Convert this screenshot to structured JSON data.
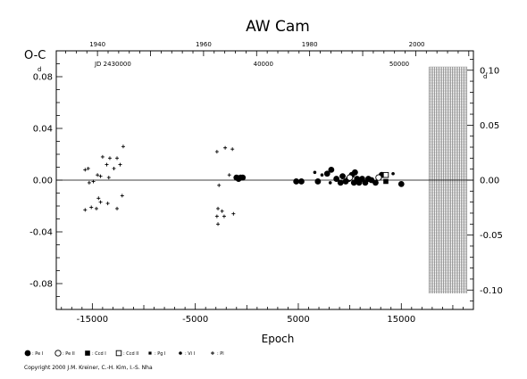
{
  "chart_data": {
    "type": "scatter",
    "title": "AW Cam",
    "ylabel": "O-C",
    "y_unit_mark": "d",
    "xlabel": "Epoch",
    "xlim": [
      -18500,
      22000
    ],
    "ylim": [
      -0.1,
      0.1
    ],
    "x_ticks": [
      -15000,
      -5000,
      5000,
      15000
    ],
    "x_tick_labels": [
      "-15000",
      "-5000",
      "5000",
      "15000"
    ],
    "y_ticks": [
      0.08,
      0.04,
      0.0,
      -0.04,
      -0.08
    ],
    "y_tick_labels": [
      "0.08",
      "0.04",
      "0.00",
      "-0.04",
      "-0.08"
    ],
    "y_right_ticks": [
      0.1,
      0.05,
      0.0,
      -0.05,
      -0.1
    ],
    "y_right_tick_labels": [
      "0.10",
      "0.05",
      "0.00",
      "-0.05",
      "-0.10"
    ],
    "top_year_ticks": [
      1940,
      1960,
      1980,
      2000
    ],
    "top_year_positions": [
      -14500,
      -4200,
      6100,
      16500
    ],
    "top_jd_labels": [
      {
        "text": "JD 2430000",
        "x": -13000
      },
      {
        "text": "40000",
        "x": 1600
      },
      {
        "text": "50000",
        "x": 14800
      }
    ],
    "shaded_region": {
      "x_start": 17700,
      "x_end": 21400
    },
    "grid": false,
    "zero_line": true,
    "legend_position": "bottom",
    "legend": [
      {
        "symbol": "filled-circle",
        "label": ": Pe I"
      },
      {
        "symbol": "open-circle",
        "label": ": Pe II"
      },
      {
        "symbol": "filled-square",
        "label": ": Ccd I"
      },
      {
        "symbol": "open-square",
        "label": ": Ccd II"
      },
      {
        "symbol": "small-square",
        "label": ": Pg I"
      },
      {
        "symbol": "small-circle",
        "label": ": Vi I"
      },
      {
        "symbol": "plus",
        "label": ": Pl"
      }
    ],
    "series": [
      {
        "name": "Pl",
        "marker": "plus",
        "points": [
          [
            -15700,
            0.008
          ],
          [
            -15400,
            0.009
          ],
          [
            -15300,
            -0.002
          ],
          [
            -14900,
            -0.001
          ],
          [
            -14500,
            0.004
          ],
          [
            -14400,
            -0.014
          ],
          [
            -14000,
            0.018
          ],
          [
            -13600,
            0.012
          ],
          [
            -13300,
            0.017
          ],
          [
            -12900,
            0.009
          ],
          [
            -12600,
            0.017
          ],
          [
            -12300,
            0.012
          ],
          [
            -12000,
            0.026
          ],
          [
            -12100,
            -0.012
          ],
          [
            -15700,
            -0.023
          ],
          [
            -15100,
            -0.021
          ],
          [
            -14600,
            -0.022
          ],
          [
            -14200,
            -0.017
          ],
          [
            -13500,
            -0.018
          ],
          [
            -12600,
            -0.022
          ],
          [
            -13400,
            0.002
          ],
          [
            -14200,
            0.003
          ],
          [
            -2900,
            0.022
          ],
          [
            -2700,
            -0.004
          ],
          [
            -2800,
            -0.022
          ],
          [
            -2900,
            -0.028
          ],
          [
            -2800,
            -0.034
          ],
          [
            -2400,
            -0.024
          ],
          [
            -2200,
            -0.028
          ],
          [
            -2100,
            0.025
          ],
          [
            -1700,
            0.004
          ],
          [
            -1400,
            0.024
          ],
          [
            -1300,
            -0.026
          ]
        ]
      },
      {
        "name": "Pe I",
        "marker": "filled-circle",
        "points": [
          [
            -1000,
            0.002
          ],
          [
            -800,
            0.001
          ],
          [
            -600,
            0.002
          ],
          [
            -400,
            0.002
          ],
          [
            4800,
            -0.001
          ],
          [
            5300,
            -0.001
          ],
          [
            6900,
            -0.001
          ],
          [
            7800,
            0.005
          ],
          [
            8200,
            0.008
          ],
          [
            8700,
            0.001
          ],
          [
            9100,
            -0.002
          ],
          [
            9300,
            0.003
          ],
          [
            9600,
            -0.001
          ],
          [
            9900,
            0.001
          ],
          [
            10200,
            0.004
          ],
          [
            10400,
            -0.002
          ],
          [
            10500,
            0.006
          ],
          [
            10700,
            0.001
          ],
          [
            10900,
            -0.002
          ],
          [
            11200,
            0.001
          ],
          [
            11500,
            -0.002
          ],
          [
            11800,
            0.001
          ],
          [
            12100,
            0.0
          ],
          [
            12500,
            -0.002
          ],
          [
            13100,
            0.004
          ],
          [
            15000,
            -0.003
          ]
        ]
      },
      {
        "name": "Pe II",
        "marker": "open-circle",
        "points": [
          [
            10000,
            0.002
          ],
          [
            12800,
            0.002
          ]
        ]
      },
      {
        "name": "Ccd I",
        "marker": "filled-square",
        "points": [
          [
            13500,
            -0.001
          ]
        ]
      },
      {
        "name": "Ccd II",
        "marker": "open-square",
        "points": [
          [
            13500,
            0.004
          ]
        ]
      },
      {
        "name": "Vi I",
        "marker": "small-circle",
        "points": [
          [
            6600,
            0.006
          ],
          [
            7300,
            0.004
          ],
          [
            8100,
            -0.002
          ],
          [
            14200,
            0.005
          ]
        ]
      }
    ]
  },
  "copyright": "Copyright 2000 J.M. Kreiner, C.-H. Kim, I.-S. Nha"
}
